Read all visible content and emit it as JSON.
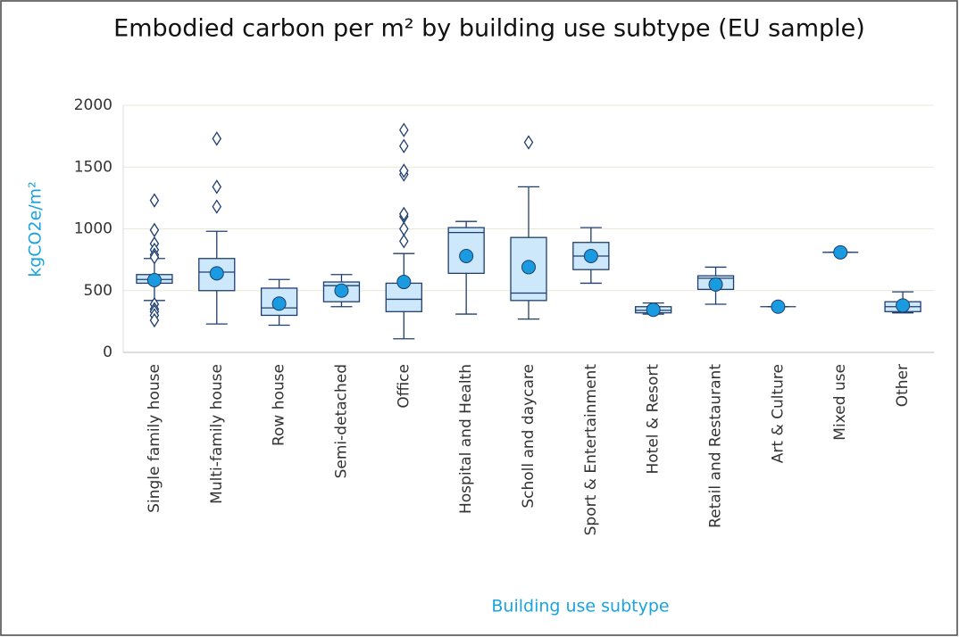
{
  "chart_data": {
    "type": "box",
    "title": "Embodied carbon per m² by building use subtype (EU sample)",
    "x_label": "Building use subtype",
    "y_label": "kgCO2e/m²",
    "categories": [
      "Single family house",
      "Multi-family house",
      "Row house",
      "Semi-detached",
      "Office",
      "Hospital and Health",
      "Scholl and daycare",
      "Sport & Entertainment",
      "Hotel & Resort",
      "Retail and Restaurant",
      "Art & Culture",
      "Mixed use",
      "Other"
    ],
    "min": [
      420,
      230,
      220,
      370,
      110,
      310,
      270,
      560,
      310,
      390,
      370,
      810,
      320
    ],
    "q1": [
      560,
      500,
      300,
      410,
      330,
      640,
      420,
      670,
      320,
      510,
      370,
      810,
      330
    ],
    "median": [
      590,
      650,
      360,
      540,
      430,
      970,
      480,
      780,
      340,
      600,
      370,
      810,
      370
    ],
    "q3": [
      630,
      760,
      520,
      570,
      560,
      1010,
      930,
      890,
      370,
      620,
      370,
      810,
      410
    ],
    "max": [
      760,
      980,
      590,
      630,
      800,
      1060,
      1340,
      1010,
      400,
      690,
      370,
      810,
      490
    ],
    "mean": [
      585,
      640,
      395,
      500,
      570,
      780,
      690,
      780,
      345,
      550,
      370,
      810,
      380
    ],
    "outliers": [
      [
        1230,
        990,
        880,
        830,
        790,
        770,
        390,
        350,
        330,
        300,
        260
      ],
      [
        1730,
        1340,
        1180
      ],
      [],
      [],
      [
        900,
        1000,
        1100,
        1120,
        1440,
        1470,
        1670,
        1800
      ],
      [],
      [
        1700
      ],
      [],
      [],
      [],
      [],
      [],
      []
    ],
    "box_color": "#cce8fa",
    "line_color": "#1f3e6e",
    "mean_color": "#1a9be0",
    "ylim": [
      0,
      2000
    ],
    "yticks": [
      0,
      500,
      1000,
      1500,
      2000
    ],
    "grid": true
  }
}
